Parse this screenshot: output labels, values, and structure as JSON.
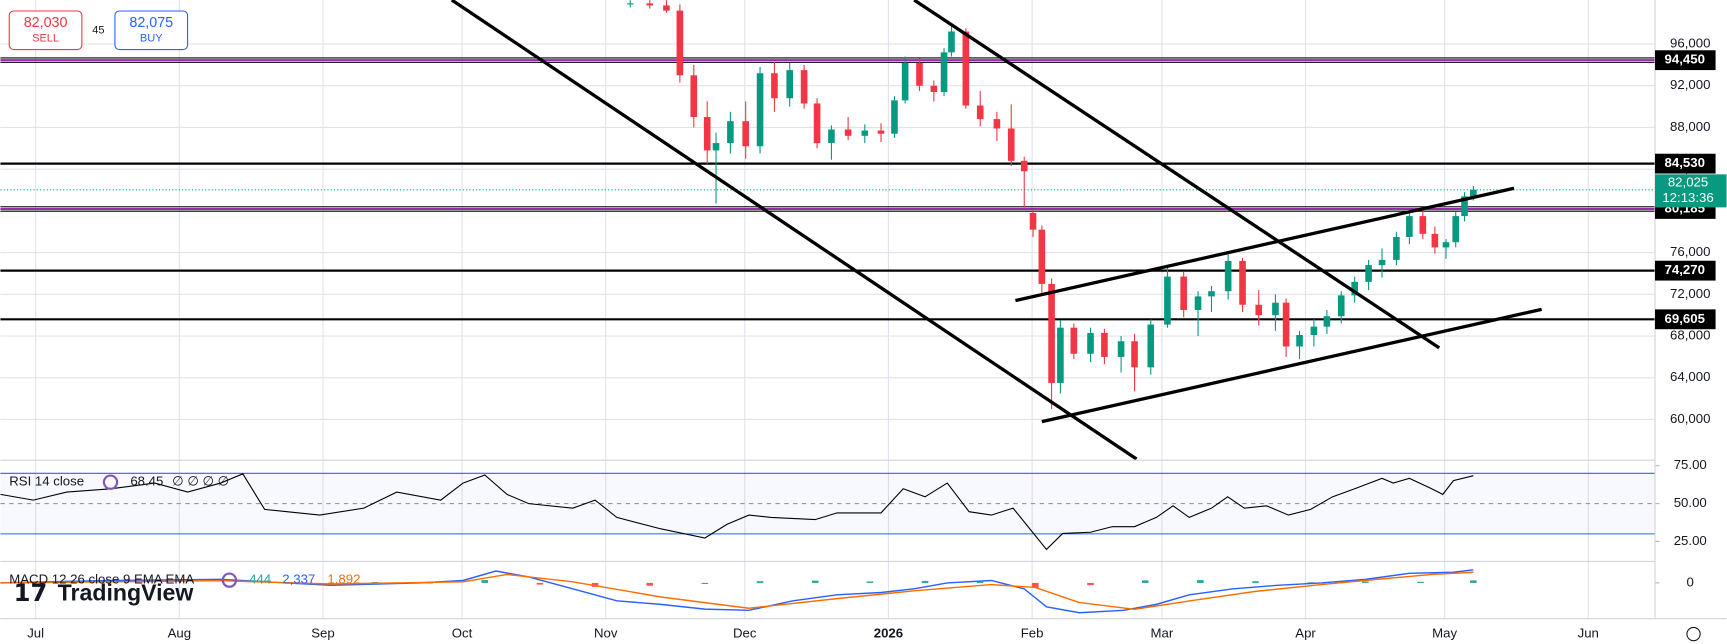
{
  "widget": {
    "sell_price": "82,030",
    "sell_label": "SELL",
    "spread": "45",
    "buy_price": "82,075",
    "buy_label": "BUY",
    "logo": "TradingView"
  },
  "chart_data": [
    {
      "type": "candlestick",
      "x": [
        128.3,
        132.5,
        136.1,
        139,
        142,
        144.9,
        146.8,
        149.9,
        153.2,
        156.3,
        159.4,
        162.7,
        165.8,
        168.6,
        171.7,
        175.3,
        178.9,
        182.4,
        185.3,
        187.6,
        190.7,
        193.8,
        196,
        197.6,
        200.7,
        203.8,
        207.4,
        210.5,
        213.3,
        215.2,
        217.1,
        219.2,
        221.1,
        224,
        227.6,
        230.6,
        234.2,
        237.1,
        240.6,
        244.2,
        247.7,
        250.8,
        253.7,
        257.3,
        260.4,
        263.9,
        267.5,
        269.8,
        272.7,
        275.8,
        278.6,
        281.7,
        284.6,
        287.6,
        290.5,
        293.6,
        296.4,
        299.3,
        301.9,
        304.3,
        306.4,
        308.3,
        310.2
      ],
      "open": [
        99800,
        99900,
        99700,
        99200,
        93000,
        89000,
        85800,
        86500,
        88600,
        86200,
        93200,
        90800,
        93500,
        90300,
        86500,
        87800,
        87200,
        87700,
        87400,
        90600,
        94200,
        92000,
        91400,
        95200,
        97200,
        90100,
        88800,
        87900,
        84800,
        79800,
        78200,
        73000,
        63500,
        68800,
        66300,
        68300,
        66000,
        67500,
        65000,
        69100,
        73700,
        70500,
        71800,
        72300,
        75200,
        71000,
        70000,
        71200,
        67000,
        68100,
        68900,
        69900,
        71900,
        73200,
        74800,
        75300,
        77500,
        79500,
        77800,
        76500,
        77000,
        79500,
        81400
      ],
      "high": [
        100200,
        100200,
        100200,
        99800,
        94000,
        90500,
        87500,
        89500,
        90500,
        93800,
        94300,
        94200,
        94000,
        90800,
        88200,
        89000,
        88300,
        88400,
        91000,
        94800,
        94600,
        92500,
        95600,
        97900,
        97500,
        91500,
        89500,
        90200,
        85200,
        80100,
        78600,
        73500,
        69500,
        69200,
        68800,
        68700,
        68000,
        68200,
        69600,
        74600,
        74200,
        72300,
        72800,
        75900,
        75500,
        72400,
        72000,
        71600,
        68500,
        69600,
        70500,
        72300,
        73700,
        75300,
        76400,
        78000,
        79900,
        80000,
        78500,
        77300,
        79900,
        81800,
        82400
      ],
      "low": [
        99500,
        99400,
        99000,
        92300,
        88000,
        84500,
        80700,
        85500,
        85000,
        85500,
        89500,
        90000,
        89800,
        86000,
        84900,
        86800,
        86500,
        86600,
        87000,
        90300,
        91500,
        90500,
        91000,
        94800,
        89800,
        88100,
        86700,
        84300,
        80300,
        77500,
        72000,
        61000,
        62500,
        65800,
        65500,
        65300,
        64500,
        62700,
        64300,
        68800,
        69800,
        68000,
        70300,
        71500,
        70300,
        69000,
        68500,
        66000,
        65800,
        67000,
        68200,
        69200,
        71200,
        72400,
        73600,
        74800,
        76800,
        77300,
        75900,
        75400,
        76500,
        79000,
        81000
      ],
      "close": [
        99900,
        99700,
        99200,
        93000,
        89000,
        85800,
        86500,
        88600,
        86200,
        93200,
        90800,
        93500,
        90300,
        86500,
        87800,
        87200,
        87700,
        87400,
        90600,
        94200,
        92000,
        91400,
        95200,
        97200,
        90100,
        88800,
        87900,
        84800,
        83800,
        78200,
        73000,
        63500,
        68800,
        66300,
        68300,
        66000,
        67500,
        65000,
        69100,
        73700,
        70500,
        71800,
        72300,
        75200,
        71000,
        70000,
        71200,
        67000,
        68100,
        68900,
        69900,
        71900,
        73200,
        74800,
        75300,
        77500,
        79500,
        77800,
        76500,
        77000,
        79500,
        81400,
        82025
      ],
      "up_color": "#089981",
      "down_color": "#f23645",
      "xlim": [
        -7.6,
        349.4
      ],
      "xticks": [
        {
          "value": 0,
          "label": "Jul"
        },
        {
          "value": 31,
          "label": "Aug"
        },
        {
          "value": 62,
          "label": "Sep"
        },
        {
          "value": 92,
          "label": "Oct"
        },
        {
          "value": 123,
          "label": "Nov"
        },
        {
          "value": 153,
          "label": "Dec"
        },
        {
          "value": 184,
          "label": "2026"
        },
        {
          "value": 215,
          "label": "Feb"
        },
        {
          "value": 243,
          "label": "Mar"
        },
        {
          "value": 274,
          "label": "Apr"
        },
        {
          "value": 304,
          "label": "May"
        },
        {
          "value": 335,
          "label": "Jun"
        }
      ],
      "ylim": [
        56100,
        100220
      ],
      "yticks": [
        {
          "value": 60000,
          "label": "60,000"
        },
        {
          "value": 64000,
          "label": "64,000"
        },
        {
          "value": 68000,
          "label": "68,000"
        },
        {
          "value": 72000,
          "label": "72,000"
        },
        {
          "value": 76000,
          "label": "76,000"
        },
        {
          "value": 80000,
          "label": "80,000"
        },
        {
          "value": 84000,
          "label": "84,000"
        },
        {
          "value": 88000,
          "label": "88,000"
        },
        {
          "value": 92000,
          "label": "92,000"
        },
        {
          "value": 96000,
          "label": "96,000"
        }
      ],
      "grid": true,
      "levels": [
        {
          "value": 94450,
          "label": "94,450",
          "color": "#9c27b0"
        },
        {
          "value": 84530,
          "label": "84,530",
          "color": "#000000"
        },
        {
          "value": 80185,
          "label": "80,185",
          "color": "#9c27b0"
        },
        {
          "value": 74270,
          "label": "74,270",
          "color": "#000000"
        },
        {
          "value": 69605,
          "label": "69,605",
          "color": "#000000"
        }
      ],
      "last_price": {
        "value": 82025,
        "label": "82,025"
      },
      "countdown": "12:13:36"
    },
    {
      "type": "line",
      "title": "RSI 14 close",
      "inputs": "∅ ∅ ∅ ∅",
      "x": [
        -7.6,
        -0.5,
        6.7,
        16.2,
        25.7,
        32.8,
        39.9,
        44.7,
        49.4,
        54.2,
        61.3,
        70.8,
        77.9,
        87.4,
        92.2,
        96.9,
        101.7,
        106.4,
        115.9,
        120.7,
        125.4,
        134.9,
        144.4,
        149.2,
        153.9,
        158.7,
        168.2,
        172.9,
        182.4,
        187.2,
        191.9,
        196.7,
        201.4,
        206.2,
        210.9,
        214.5,
        218.1,
        221.6,
        227.6,
        232.3,
        237.1,
        241.8,
        245.4,
        248.9,
        253.7,
        257.2,
        260.8,
        265.6,
        270.3,
        275.1,
        279.8,
        284.6,
        290.5,
        292.9,
        296.4,
        301.2,
        303.6,
        305.9,
        310.2
      ],
      "values": [
        56.1,
        52.3,
        57.6,
        59.8,
        63.6,
        57.6,
        63.6,
        69.7,
        46.2,
        44.7,
        42.4,
        47,
        57.6,
        52.3,
        63.6,
        68.9,
        56.1,
        50,
        47,
        52.3,
        40.9,
        33.3,
        27.3,
        36.4,
        42.4,
        40.9,
        39.4,
        43.9,
        43.9,
        59.8,
        54.5,
        63.6,
        44.7,
        42.4,
        47,
        33.3,
        19.7,
        30.3,
        31.1,
        34.8,
        34.8,
        40.9,
        48.5,
        40.9,
        47,
        54.5,
        47,
        48.5,
        42.4,
        46.2,
        54.5,
        59.8,
        66.7,
        63.6,
        66.7,
        59.8,
        56.1,
        65.2,
        68.45
      ],
      "color": "#000000",
      "ylim": [
        11.8,
        78.7
      ],
      "yticks": [
        {
          "value": 75,
          "label": "75.00"
        },
        {
          "value": 50,
          "label": "50.00"
        },
        {
          "value": 25,
          "label": "25.00"
        }
      ],
      "bands": [
        70,
        30
      ],
      "band_color": "#2962ff"
    },
    {
      "type": "macd",
      "title": "MACD 12 26 close 9 EMA EMA",
      "readouts": [
        "444",
        "2,337",
        "1,892"
      ],
      "histogram": {
        "x": [
          73.2,
          85,
          96.9,
          108.8,
          120.7,
          132.5,
          144.4,
          156.3,
          168.2,
          180,
          191.9,
          203.8,
          215.7,
          227.6,
          239.4,
          251.3,
          263.2,
          275.1,
          286.9,
          298.8,
          310.2
        ],
        "values": [
          150,
          100,
          500,
          -300,
          -700,
          -500,
          -200,
          300,
          400,
          250,
          350,
          200,
          -900,
          -400,
          450,
          500,
          300,
          100,
          250,
          200,
          444
        ],
        "up_color": "#26a69a",
        "down_color": "#ff5252"
      },
      "series": [
        {
          "color": "#2962ff",
          "x": [
            -7.6,
            16.2,
            39.9,
            63.7,
            82.7,
            92.2,
            99.3,
            106.4,
            115.9,
            125.4,
            134.9,
            144.4,
            153.9,
            163.4,
            172.9,
            182.4,
            189.5,
            196.7,
            206.2,
            213.3,
            218.1,
            225.2,
            234.7,
            241.8,
            248.9,
            258.4,
            267.9,
            277.4,
            286.9,
            296.4,
            305.9,
            310.2
          ],
          "values": [
            0,
            424,
            636,
            -424,
            0,
            424,
            2120,
            1060,
            -1060,
            -3180,
            -3816,
            -4664,
            -4876,
            -3180,
            -2120,
            -1696,
            -1060,
            0,
            424,
            -1060,
            -4240,
            -5300,
            -4876,
            -3816,
            -2120,
            -1060,
            -424,
            0,
            636,
            1696,
            1908,
            2337
          ]
        },
        {
          "color": "#ff6d00",
          "x": [
            -7.6,
            16.2,
            39.9,
            63.7,
            92.2,
            101.7,
            115.9,
            134.9,
            153.9,
            172.9,
            189.5,
            206.2,
            215.7,
            225.2,
            237.1,
            248.9,
            263.2,
            277.4,
            291.7,
            301.2,
            310.2
          ],
          "values": [
            0,
            200,
            400,
            -200,
            200,
            1500,
            200,
            -2500,
            -4500,
            -2800,
            -1400,
            -300,
            -800,
            -3500,
            -4700,
            -3200,
            -1500,
            -300,
            800,
            1500,
            1892
          ]
        }
      ],
      "ylim": [
        -6360,
        3816
      ],
      "yticks": [
        0
      ]
    }
  ]
}
